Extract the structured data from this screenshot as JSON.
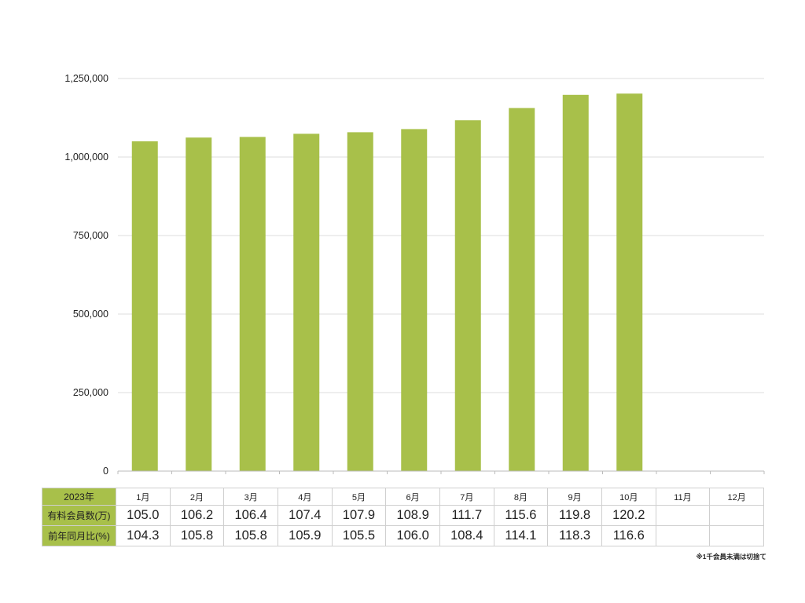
{
  "chart_data": {
    "type": "bar",
    "categories": [
      "1月",
      "2月",
      "3月",
      "4月",
      "5月",
      "6月",
      "7月",
      "8月",
      "9月",
      "10月",
      "11月",
      "12月"
    ],
    "values": [
      1050000,
      1062000,
      1064000,
      1074000,
      1079000,
      1089000,
      1117000,
      1156000,
      1198000,
      1202000,
      null,
      null
    ],
    "yticks": [
      "0",
      "250,000",
      "500,000",
      "750,000",
      "1,000,000",
      "1,250,000"
    ],
    "ylim": [
      0,
      1250000
    ],
    "bar_color": "#a8c04a",
    "grid": true
  },
  "table": {
    "year_label": "2023年",
    "months": [
      "1月",
      "2月",
      "3月",
      "4月",
      "5月",
      "6月",
      "7月",
      "8月",
      "9月",
      "10月",
      "11月",
      "12月"
    ],
    "rows": [
      {
        "label": "有料会員数(万)",
        "values": [
          "105.0",
          "106.2",
          "106.4",
          "107.4",
          "107.9",
          "108.9",
          "111.7",
          "115.6",
          "119.8",
          "120.2",
          "",
          ""
        ]
      },
      {
        "label": "前年同月比(%)",
        "values": [
          "104.3",
          "105.8",
          "105.8",
          "105.9",
          "105.5",
          "106.0",
          "108.4",
          "114.1",
          "118.3",
          "116.6",
          "",
          ""
        ]
      }
    ]
  },
  "note": "※1千会員未満は切捨て"
}
